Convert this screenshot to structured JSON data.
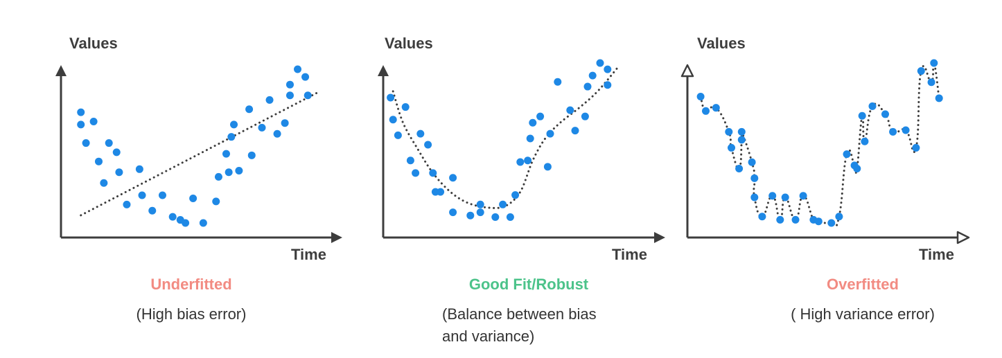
{
  "colors": {
    "axis": "#3d3d3d",
    "point": "#1e88e5",
    "fit": "#3d3d3d",
    "underfit": "#f28b82",
    "goodfit": "#4cc38a",
    "overfit": "#f28b82"
  },
  "panels": [
    {
      "axis_y_label": "Values",
      "axis_x_label": "Time",
      "title": "Underfitted",
      "subtitle": "(High bias error)",
      "arrow_style": "filled",
      "chart_data": {
        "type": "scatter",
        "points": [
          [
            0.04,
            0.72
          ],
          [
            0.04,
            0.64
          ],
          [
            0.06,
            0.52
          ],
          [
            0.09,
            0.66
          ],
          [
            0.11,
            0.4
          ],
          [
            0.13,
            0.26
          ],
          [
            0.15,
            0.52
          ],
          [
            0.18,
            0.46
          ],
          [
            0.19,
            0.33
          ],
          [
            0.22,
            0.12
          ],
          [
            0.27,
            0.35
          ],
          [
            0.28,
            0.18
          ],
          [
            0.32,
            0.08
          ],
          [
            0.36,
            0.18
          ],
          [
            0.4,
            0.04
          ],
          [
            0.43,
            0.02
          ],
          [
            0.45,
            0.0
          ],
          [
            0.48,
            0.16
          ],
          [
            0.52,
            0.0
          ],
          [
            0.57,
            0.14
          ],
          [
            0.58,
            0.3
          ],
          [
            0.61,
            0.45
          ],
          [
            0.62,
            0.33
          ],
          [
            0.63,
            0.56
          ],
          [
            0.64,
            0.64
          ],
          [
            0.66,
            0.34
          ],
          [
            0.7,
            0.74
          ],
          [
            0.71,
            0.44
          ],
          [
            0.75,
            0.62
          ],
          [
            0.78,
            0.8
          ],
          [
            0.81,
            0.58
          ],
          [
            0.84,
            0.65
          ],
          [
            0.86,
            0.83
          ],
          [
            0.86,
            0.9
          ],
          [
            0.89,
            1.0
          ],
          [
            0.92,
            0.95
          ],
          [
            0.93,
            0.83
          ]
        ],
        "fit": {
          "style": "dotted",
          "kind": "linear",
          "from": [
            0.04,
            0.05
          ],
          "to": [
            0.97,
            0.85
          ]
        }
      }
    },
    {
      "axis_y_label": "Values",
      "axis_x_label": "Time",
      "title": "Good Fit/Robust",
      "subtitle": "(Balance between bias and variance)",
      "arrow_style": "filled",
      "chart_data": {
        "type": "scatter",
        "points": [
          [
            0.01,
            0.78
          ],
          [
            0.02,
            0.64
          ],
          [
            0.04,
            0.54
          ],
          [
            0.07,
            0.72
          ],
          [
            0.09,
            0.38
          ],
          [
            0.11,
            0.3
          ],
          [
            0.13,
            0.55
          ],
          [
            0.16,
            0.48
          ],
          [
            0.18,
            0.3
          ],
          [
            0.19,
            0.18
          ],
          [
            0.21,
            0.18
          ],
          [
            0.26,
            0.05
          ],
          [
            0.26,
            0.27
          ],
          [
            0.33,
            0.03
          ],
          [
            0.37,
            0.05
          ],
          [
            0.37,
            0.1
          ],
          [
            0.43,
            0.02
          ],
          [
            0.46,
            0.1
          ],
          [
            0.49,
            0.02
          ],
          [
            0.51,
            0.16
          ],
          [
            0.53,
            0.37
          ],
          [
            0.56,
            0.38
          ],
          [
            0.57,
            0.52
          ],
          [
            0.58,
            0.62
          ],
          [
            0.61,
            0.66
          ],
          [
            0.64,
            0.34
          ],
          [
            0.65,
            0.55
          ],
          [
            0.68,
            0.88
          ],
          [
            0.73,
            0.7
          ],
          [
            0.75,
            0.57
          ],
          [
            0.79,
            0.66
          ],
          [
            0.8,
            0.85
          ],
          [
            0.82,
            0.92
          ],
          [
            0.85,
            1.0
          ],
          [
            0.88,
            0.96
          ],
          [
            0.88,
            0.86
          ]
        ],
        "fit": {
          "style": "dotted",
          "kind": "smooth",
          "curve": [
            [
              0.02,
              0.82
            ],
            [
              0.06,
              0.62
            ],
            [
              0.12,
              0.45
            ],
            [
              0.18,
              0.3
            ],
            [
              0.25,
              0.18
            ],
            [
              0.32,
              0.11
            ],
            [
              0.4,
              0.08
            ],
            [
              0.47,
              0.09
            ],
            [
              0.53,
              0.18
            ],
            [
              0.58,
              0.38
            ],
            [
              0.63,
              0.52
            ],
            [
              0.69,
              0.62
            ],
            [
              0.77,
              0.72
            ],
            [
              0.84,
              0.82
            ],
            [
              0.92,
              0.97
            ]
          ]
        }
      }
    },
    {
      "axis_y_label": "Values",
      "axis_x_label": "Time",
      "title": "Overfitted",
      "subtitle": "( High variance error)",
      "arrow_style": "outline",
      "chart_data": {
        "type": "scatter",
        "points": [
          [
            0.03,
            0.79
          ],
          [
            0.05,
            0.7
          ],
          [
            0.09,
            0.72
          ],
          [
            0.14,
            0.57
          ],
          [
            0.15,
            0.47
          ],
          [
            0.18,
            0.34
          ],
          [
            0.19,
            0.52
          ],
          [
            0.19,
            0.57
          ],
          [
            0.23,
            0.38
          ],
          [
            0.24,
            0.28
          ],
          [
            0.24,
            0.16
          ],
          [
            0.27,
            0.04
          ],
          [
            0.31,
            0.17
          ],
          [
            0.34,
            0.02
          ],
          [
            0.36,
            0.16
          ],
          [
            0.4,
            0.02
          ],
          [
            0.43,
            0.17
          ],
          [
            0.47,
            0.02
          ],
          [
            0.49,
            0.01
          ],
          [
            0.54,
            0.0
          ],
          [
            0.57,
            0.04
          ],
          [
            0.6,
            0.43
          ],
          [
            0.63,
            0.36
          ],
          [
            0.64,
            0.34
          ],
          [
            0.66,
            0.67
          ],
          [
            0.67,
            0.51
          ],
          [
            0.7,
            0.73
          ],
          [
            0.75,
            0.68
          ],
          [
            0.78,
            0.57
          ],
          [
            0.83,
            0.58
          ],
          [
            0.87,
            0.47
          ],
          [
            0.89,
            0.95
          ],
          [
            0.93,
            0.88
          ],
          [
            0.94,
            1.0
          ],
          [
            0.96,
            0.78
          ]
        ],
        "fit": {
          "style": "dotted",
          "kind": "interpolating"
        }
      }
    }
  ]
}
